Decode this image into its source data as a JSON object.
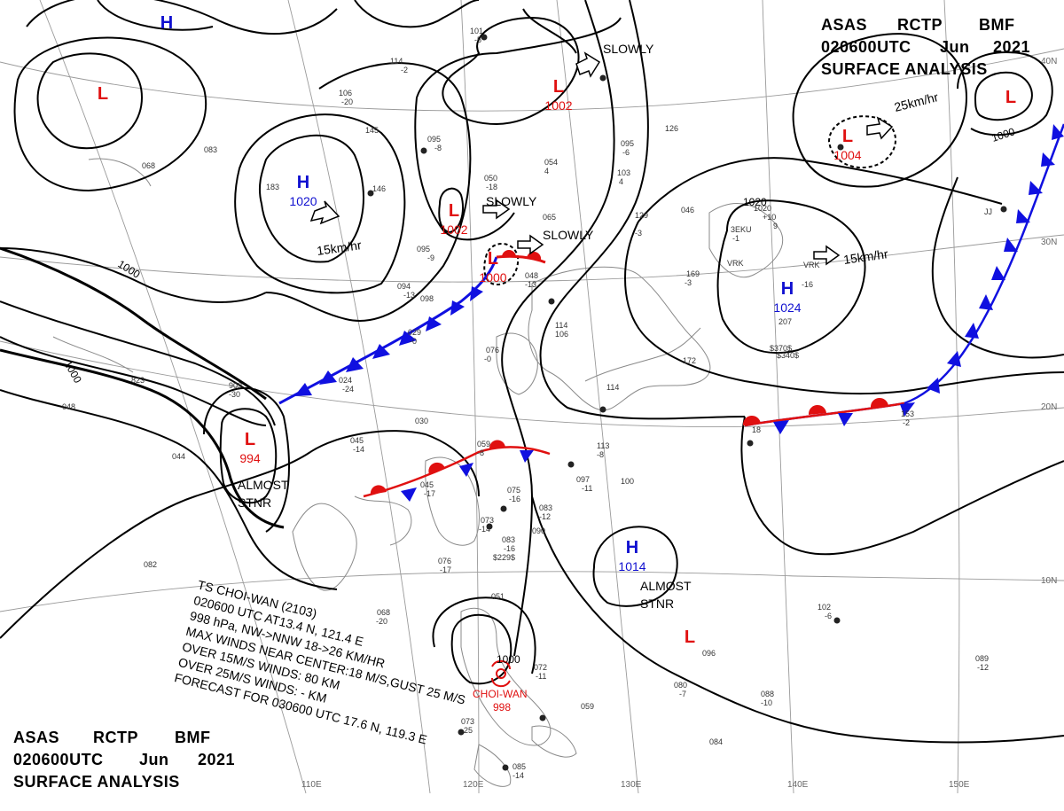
{
  "header": {
    "line1": [
      "ASAS",
      "RCTP",
      "BMF"
    ],
    "line2": [
      "020600UTC",
      "Jun",
      "2021"
    ],
    "line3": "SURFACE ANALYSIS"
  },
  "pressure_centers": [
    {
      "type": "H",
      "value": "",
      "color": "#1010d0"
    },
    {
      "type": "L",
      "value": "",
      "color": "#e01010"
    },
    {
      "type": "H",
      "value": "1020",
      "color": "#1010d0"
    },
    {
      "type": "L",
      "value": "1002",
      "color": "#e01010"
    },
    {
      "type": "L",
      "value": "1002",
      "color": "#e01010"
    },
    {
      "type": "L",
      "value": "1000",
      "color": "#e01010"
    },
    {
      "type": "L",
      "value": "1004",
      "color": "#e01010"
    },
    {
      "type": "L",
      "value": "",
      "color": "#e01010"
    },
    {
      "type": "H",
      "value": "1024",
      "color": "#1010d0"
    },
    {
      "type": "L",
      "value": "994",
      "color": "#e01010"
    },
    {
      "type": "H",
      "value": "1014",
      "color": "#1010d0"
    },
    {
      "type": "L",
      "value": "",
      "color": "#e01010"
    }
  ],
  "motion_labels": [
    "SLOWLY",
    "SLOWLY",
    "SLOWLY",
    "15km/hr",
    "25km/hr",
    "15km/hr",
    "ALMOST\nSTNR",
    "ALMOST\nSTNR"
  ],
  "isobar_labels": [
    "1000",
    "1000",
    "1000",
    "1020"
  ],
  "typhoon": {
    "name_label": "CHOI-WAN",
    "pressure": "998",
    "central_pressure_label": "1000",
    "bulletin": [
      "TS  CHOI-WAN  (2103)",
      "020600 UTC  AT13.4 N, 121.4 E",
      "998 hPa, NW->NNW  18->26 KM/HR",
      "MAX WINDS NEAR CENTER:18 M/S,GUST 25 M/S",
      "OVER 15M/S WINDS: 80 KM",
      "OVER 25M/S WINDS: - KM",
      "FORECAST FOR 030600 UTC 17.6 N, 119.3 E"
    ]
  },
  "grid_labels": {
    "longitude": [
      "110E",
      "120E",
      "130E",
      "140E",
      "150E"
    ],
    "latitude": [
      "40N",
      "30N",
      "20N",
      "10N"
    ]
  },
  "station_obs": [
    "101",
    "-5",
    "114",
    "-2",
    "106",
    "-20",
    "145",
    "095",
    "-8",
    "083",
    "068",
    "183",
    "146",
    "095",
    "-9",
    "094",
    "-13",
    "098",
    "029",
    "-0",
    "076",
    "-0",
    "909",
    "-30",
    "823",
    "024",
    "-24",
    "048",
    "044",
    "045",
    "-14",
    "030",
    "045",
    "-17",
    "059",
    "-8",
    "075",
    "-16",
    "073",
    "-14",
    "090",
    "083",
    "-12",
    "083",
    "-16",
    "$229$",
    "076",
    "-17",
    "082",
    "068",
    "-20",
    "051",
    "072",
    "-11",
    "059",
    "073",
    "-25",
    "085",
    "-14",
    "097",
    "-11",
    "100",
    "113",
    "-8",
    "065",
    "054",
    "4",
    "050",
    "-18",
    "095",
    "-6",
    "103",
    "4",
    "129",
    "-3",
    "048",
    "-13",
    "114",
    "106",
    "114",
    "046",
    "172",
    "169",
    "-3",
    "126",
    "1020",
    "+10",
    "9",
    "VRK",
    "-16",
    "$370$",
    "207",
    "$340$",
    "153",
    "-2",
    "18",
    "102",
    "-6",
    "089",
    "-12",
    "096",
    "080",
    "-7",
    "088",
    "-10",
    "084",
    "VRK",
    "3EKU",
    "-1",
    "JJ"
  ],
  "colors": {
    "low": "#e01010",
    "high": "#1010d0",
    "cold_front": "#1010e0",
    "warm_front": "#e01010",
    "isobar": "#000000",
    "grid": "#909090",
    "coast": "#888888"
  }
}
